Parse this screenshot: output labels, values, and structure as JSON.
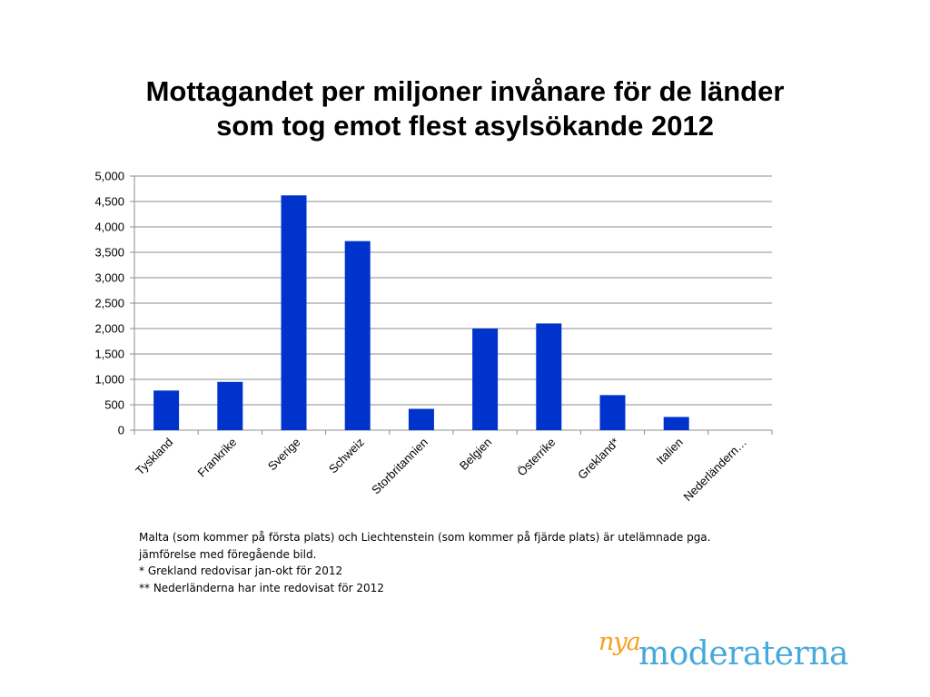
{
  "slide": {
    "title_line1": "Mottagandet per miljoner invånare för de länder",
    "title_line2": "som tog emot flest asylsökande 2012"
  },
  "chart_data": {
    "type": "bar",
    "categories": [
      "Tyskland",
      "Frankrike",
      "Sverige",
      "Schweiz",
      "Storbritannien",
      "Belgien",
      "Österrike",
      "Grekland*",
      "Italien",
      "Nederländern…"
    ],
    "values": [
      780,
      950,
      4620,
      3720,
      420,
      2000,
      2100,
      690,
      260,
      0
    ],
    "ylim": [
      0,
      5000
    ],
    "yticks": [
      "0",
      "500",
      "1,000",
      "1,500",
      "2,000",
      "2,500",
      "3,000",
      "3,500",
      "4,000",
      "4,500",
      "5,000"
    ],
    "grid": true,
    "bar_color": "#0033cc"
  },
  "notes": {
    "line1": "Malta (som kommer på första plats) och Liechtenstein (som kommer på fjärde plats) är utelämnade pga.",
    "line2": "jämförelse med föregående bild.",
    "line3": "* Grekland redovisar jan-okt för 2012",
    "line4": "** Nederländerna har inte redovisat för 2012"
  },
  "logo": {
    "prefix": "nya",
    "name": "moderaterna",
    "prefix_color": "#f5a11c",
    "name_color": "#45aad9"
  }
}
